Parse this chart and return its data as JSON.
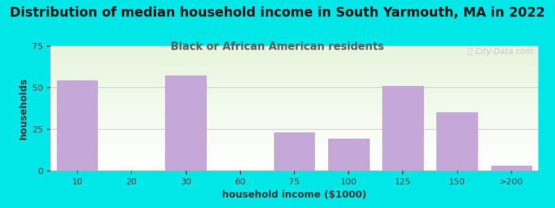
{
  "title": "Distribution of median household income in South Yarmouth, MA in 2022",
  "subtitle": "Black or African American residents",
  "xlabel": "household income ($1000)",
  "ylabel": "households",
  "categories": [
    "10",
    "20",
    "30",
    "60",
    "75",
    "100",
    "125",
    "150",
    ">200"
  ],
  "values": [
    54,
    0,
    57,
    0,
    23,
    19,
    51,
    35,
    3
  ],
  "bar_color": "#c4a8d8",
  "bar_edgecolor": "#b090c8",
  "ylim": [
    0,
    75
  ],
  "yticks": [
    0,
    25,
    50,
    75
  ],
  "bg_outer": "#00e8e8",
  "title_fontsize": 13.5,
  "subtitle_fontsize": 11,
  "subtitle_color": "#5a5a5a",
  "axis_label_fontsize": 10,
  "tick_fontsize": 9,
  "watermark": "Ⓢ City-Data.com"
}
